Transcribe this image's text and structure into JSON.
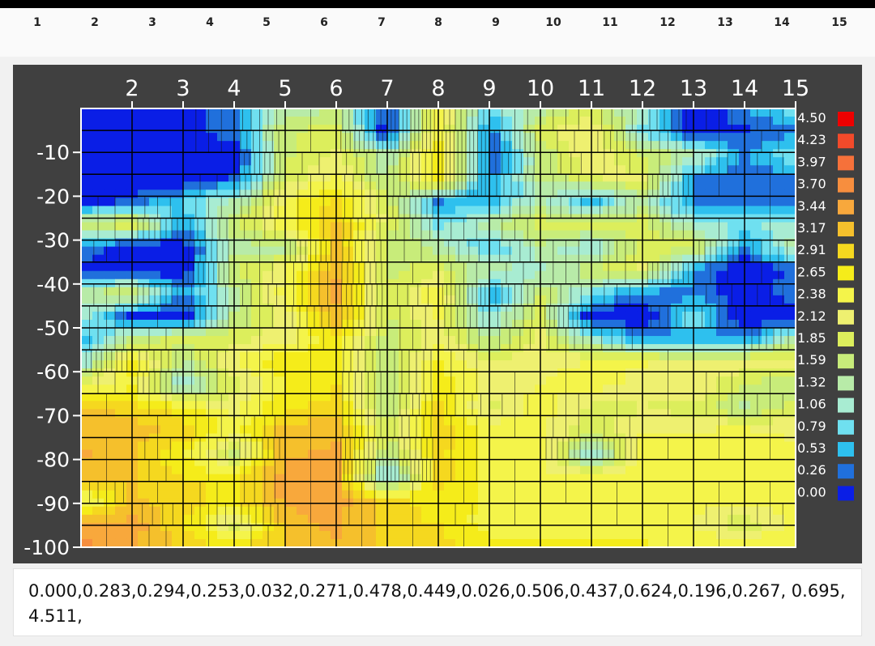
{
  "header": {
    "column_numbers": [
      "1",
      "2",
      "3",
      "4",
      "5",
      "6",
      "7",
      "8",
      "9",
      "10",
      "11",
      "12",
      "13",
      "14",
      "15"
    ]
  },
  "chart_data": {
    "type": "heatmap",
    "x_ticks": [
      "2",
      "3",
      "4",
      "5",
      "6",
      "7",
      "8",
      "9",
      "10",
      "11",
      "12",
      "13",
      "14",
      "15"
    ],
    "x_range": [
      1,
      15
    ],
    "y_ticks": [
      "-10",
      "-20",
      "-30",
      "-40",
      "-50",
      "-60",
      "-70",
      "-80",
      "-90",
      "-100"
    ],
    "y_range": [
      0,
      -100
    ],
    "rows": 20,
    "legend_levels": [
      "4.50",
      "4.23",
      "3.97",
      "3.70",
      "3.44",
      "3.17",
      "2.91",
      "2.65",
      "2.38",
      "2.12",
      "1.85",
      "1.59",
      "1.32",
      "1.06",
      "0.79",
      "0.53",
      "0.26",
      "0.00"
    ],
    "legend_colors": [
      "#ee0000",
      "#f24a2a",
      "#f6713a",
      "#f78e3e",
      "#f8a83c",
      "#f5c02c",
      "#f5d81f",
      "#f5ec1a",
      "#f4f44a",
      "#eef070",
      "#dcee5c",
      "#c8ec7a",
      "#b8eba8",
      "#a8ecd2",
      "#6fe0f0",
      "#2ec0ee",
      "#2070dc",
      "#0a1ee6"
    ],
    "legend_placement": "right",
    "grid": true,
    "grid_values": [
      [
        0,
        0,
        0,
        0.5,
        1.4,
        1.6,
        0.2,
        2.5,
        1,
        1.5,
        2,
        1.2,
        0,
        0.5,
        1
      ],
      [
        0,
        0,
        0,
        0.5,
        1.8,
        2,
        0,
        2.6,
        0.3,
        2,
        2.4,
        1,
        0,
        0.2,
        0.5
      ],
      [
        0,
        0,
        0,
        0,
        1.8,
        2.2,
        1.4,
        2.8,
        0.3,
        1.6,
        2.4,
        1.8,
        1.5,
        0.5,
        1
      ],
      [
        0,
        0,
        0,
        0.3,
        1.9,
        2.4,
        1.5,
        2.9,
        0.4,
        1.6,
        2.1,
        2.2,
        0.5,
        0.3,
        0.5
      ],
      [
        0,
        0.3,
        0.8,
        1.3,
        2.5,
        3,
        2,
        0.5,
        0.6,
        1.4,
        0.6,
        1.5,
        0.4,
        0.4,
        0.2
      ],
      [
        1.8,
        2.2,
        0.6,
        1.8,
        2.6,
        3.2,
        2,
        1,
        1.5,
        2,
        2,
        2,
        1.2,
        1,
        1.2
      ],
      [
        0.6,
        0,
        0,
        1.5,
        1.4,
        3.2,
        1.8,
        1.5,
        0.7,
        1.5,
        1,
        2,
        2,
        0.5,
        1.5
      ],
      [
        0,
        0,
        0,
        1.8,
        2.4,
        3.4,
        1.8,
        2,
        1.5,
        1.2,
        1.8,
        2.2,
        0.4,
        0,
        0.3
      ],
      [
        1.5,
        2,
        0.5,
        1.5,
        2.5,
        3.5,
        1.8,
        2.6,
        0.5,
        1.8,
        1,
        0.4,
        0.5,
        0,
        0.5
      ],
      [
        1.2,
        0.2,
        0,
        1.6,
        2.2,
        3.4,
        1.8,
        2.4,
        1,
        2,
        0,
        0,
        1,
        0,
        0
      ],
      [
        0.6,
        1.6,
        2,
        2,
        2.3,
        2.8,
        1.7,
        2.3,
        1.5,
        2.2,
        1.2,
        0.5,
        0.6,
        0.5,
        1.6
      ],
      [
        1,
        2.8,
        1.5,
        2.4,
        2.9,
        2.8,
        1.6,
        2.7,
        2.2,
        2.3,
        2.4,
        2.4,
        2.2,
        2.3,
        2.3
      ],
      [
        2.3,
        2.6,
        1,
        2,
        2.6,
        2.9,
        1.5,
        2.8,
        2.3,
        2.4,
        2.5,
        2.3,
        2.4,
        1.8,
        1.6
      ],
      [
        3.2,
        3.1,
        2.8,
        2.3,
        2.9,
        3,
        1.6,
        3,
        2,
        2.5,
        2,
        2.1,
        2,
        1.5,
        2
      ],
      [
        3.3,
        3.3,
        3.1,
        2.5,
        3.3,
        3.4,
        2,
        3.1,
        2.6,
        2.5,
        1.9,
        2.4,
        2.4,
        2.5,
        2.3
      ],
      [
        3.5,
        3.2,
        2.7,
        1.8,
        3.4,
        3.5,
        1.5,
        3,
        2.5,
        2.5,
        1,
        2.6,
        2.5,
        2.6,
        2.5
      ],
      [
        3.4,
        3.2,
        2.9,
        2.8,
        3.6,
        3.5,
        0.8,
        3.1,
        2.5,
        2.4,
        2.5,
        2.5,
        2.5,
        2.5,
        2.5
      ],
      [
        2.2,
        3.2,
        3.1,
        2.8,
        3.5,
        3.6,
        3,
        2.8,
        2.6,
        2.5,
        2.6,
        2.4,
        2.4,
        2.5,
        2.6
      ],
      [
        3.5,
        3.6,
        2.9,
        2,
        3.3,
        3.5,
        3,
        2.9,
        2.5,
        2.6,
        2.6,
        2.5,
        2.4,
        1.9,
        2.4
      ],
      [
        3.8,
        3.5,
        3.1,
        2.9,
        3.2,
        3.4,
        3.1,
        3,
        2.8,
        2.7,
        2.7,
        2.7,
        2.6,
        2.7,
        2.7
      ]
    ]
  },
  "footer": {
    "values_line": "0.000,0.283,0.294,0.253,0.032,0.271,0.478,0.449,0.026,0.506,0.437,0.624,0.196,0.267, 0.695,4.511,"
  }
}
